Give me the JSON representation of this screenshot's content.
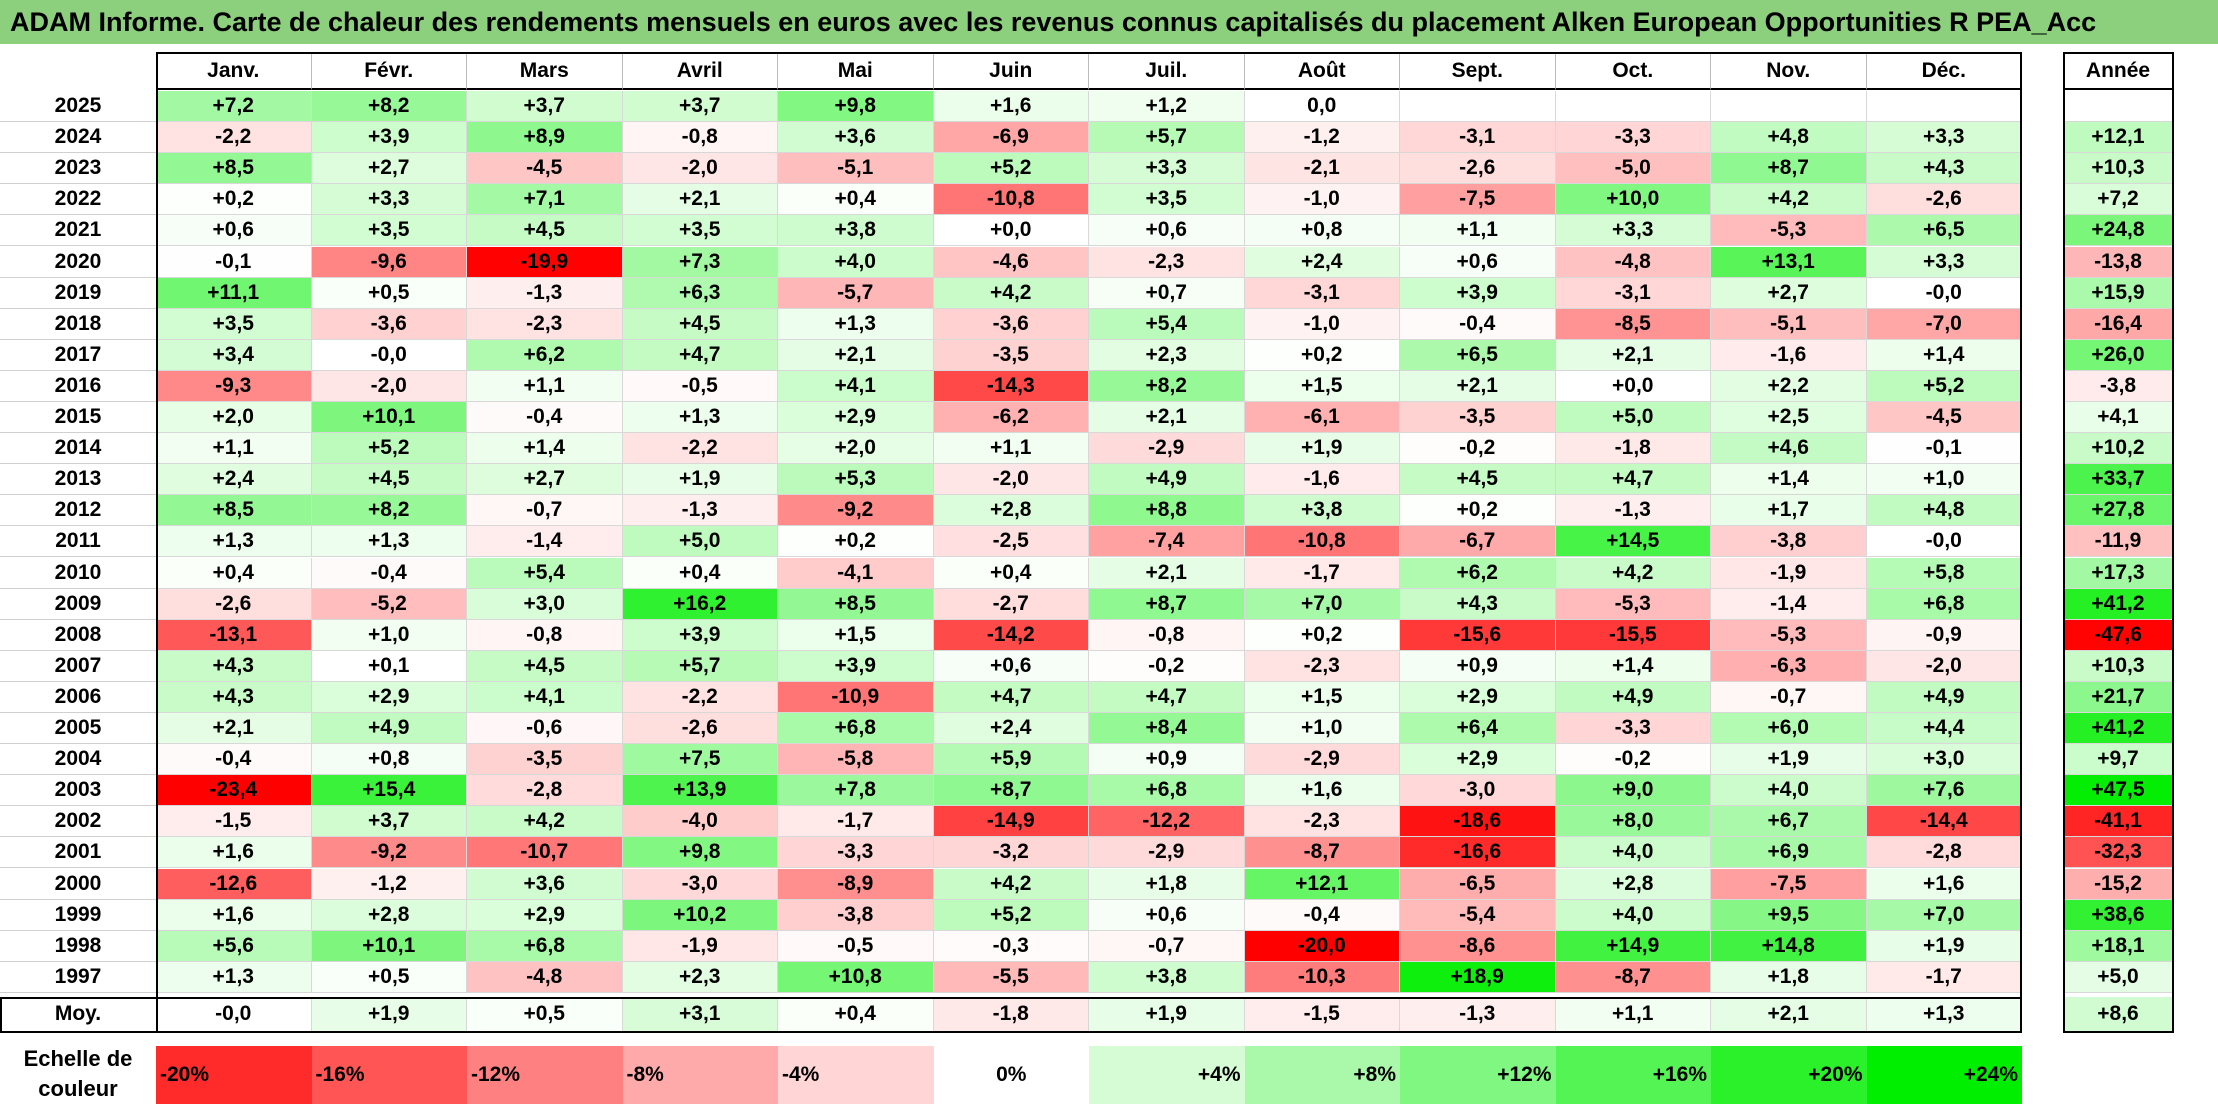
{
  "title": "ADAM Informe. Carte de chaleur des rendements mensuels en euros avec les revenus connus capitalisés du placement Alken European Opportunities R PEA_Acc",
  "colors": {
    "title_bg": "#8ccf7c",
    "negative_max": "#ff0000",
    "neutral": "#ffffff",
    "positive_max": "#00ee00"
  },
  "chart_data": {
    "type": "heatmap",
    "title": "ADAM Informe. Carte de chaleur des rendements mensuels en euros avec les revenus connus capitalisés du placement Alken European Opportunities R PEA_Acc",
    "columns": [
      "Janv.",
      "Févr.",
      "Mars",
      "Avril",
      "Mai",
      "Juin",
      "Juil.",
      "Août",
      "Sept.",
      "Oct.",
      "Nov.",
      "Déc."
    ],
    "annual_header": "Année",
    "rows": [
      {
        "year": "2025",
        "values": [
          "+7,2",
          "+8,2",
          "+3,7",
          "+3,7",
          "+9,8",
          "+1,6",
          "+1,2",
          "0,0",
          "",
          "",
          "",
          ""
        ],
        "annual": ""
      },
      {
        "year": "2024",
        "values": [
          "-2,2",
          "+3,9",
          "+8,9",
          "-0,8",
          "+3,6",
          "-6,9",
          "+5,7",
          "-1,2",
          "-3,1",
          "-3,3",
          "+4,8",
          "+3,3"
        ],
        "annual": "+12,1"
      },
      {
        "year": "2023",
        "values": [
          "+8,5",
          "+2,7",
          "-4,5",
          "-2,0",
          "-5,1",
          "+5,2",
          "+3,3",
          "-2,1",
          "-2,6",
          "-5,0",
          "+8,7",
          "+4,3"
        ],
        "annual": "+10,3"
      },
      {
        "year": "2022",
        "values": [
          "+0,2",
          "+3,3",
          "+7,1",
          "+2,1",
          "+0,4",
          "-10,8",
          "+3,5",
          "-1,0",
          "-7,5",
          "+10,0",
          "+4,2",
          "-2,6"
        ],
        "annual": "+7,2"
      },
      {
        "year": "2021",
        "values": [
          "+0,6",
          "+3,5",
          "+4,5",
          "+3,5",
          "+3,8",
          "+0,0",
          "+0,6",
          "+0,8",
          "+1,1",
          "+3,3",
          "-5,3",
          "+6,5"
        ],
        "annual": "+24,8"
      },
      {
        "year": "2020",
        "values": [
          "-0,1",
          "-9,6",
          "-19,9",
          "+7,3",
          "+4,0",
          "-4,6",
          "-2,3",
          "+2,4",
          "+0,6",
          "-4,8",
          "+13,1",
          "+3,3"
        ],
        "annual": "-13,8"
      },
      {
        "year": "2019",
        "values": [
          "+11,1",
          "+0,5",
          "-1,3",
          "+6,3",
          "-5,7",
          "+4,2",
          "+0,7",
          "-3,1",
          "+3,9",
          "-3,1",
          "+2,7",
          "-0,0"
        ],
        "annual": "+15,9"
      },
      {
        "year": "2018",
        "values": [
          "+3,5",
          "-3,6",
          "-2,3",
          "+4,5",
          "+1,3",
          "-3,6",
          "+5,4",
          "-1,0",
          "-0,4",
          "-8,5",
          "-5,1",
          "-7,0"
        ],
        "annual": "-16,4"
      },
      {
        "year": "2017",
        "values": [
          "+3,4",
          "-0,0",
          "+6,2",
          "+4,7",
          "+2,1",
          "-3,5",
          "+2,3",
          "+0,2",
          "+6,5",
          "+2,1",
          "-1,6",
          "+1,4"
        ],
        "annual": "+26,0"
      },
      {
        "year": "2016",
        "values": [
          "-9,3",
          "-2,0",
          "+1,1",
          "-0,5",
          "+4,1",
          "-14,3",
          "+8,2",
          "+1,5",
          "+2,1",
          "+0,0",
          "+2,2",
          "+5,2"
        ],
        "annual": "-3,8"
      },
      {
        "year": "2015",
        "values": [
          "+2,0",
          "+10,1",
          "-0,4",
          "+1,3",
          "+2,9",
          "-6,2",
          "+2,1",
          "-6,1",
          "-3,5",
          "+5,0",
          "+2,5",
          "-4,5"
        ],
        "annual": "+4,1"
      },
      {
        "year": "2014",
        "values": [
          "+1,1",
          "+5,2",
          "+1,4",
          "-2,2",
          "+2,0",
          "+1,1",
          "-2,9",
          "+1,9",
          "-0,2",
          "-1,8",
          "+4,6",
          "-0,1"
        ],
        "annual": "+10,2"
      },
      {
        "year": "2013",
        "values": [
          "+2,4",
          "+4,5",
          "+2,7",
          "+1,9",
          "+5,3",
          "-2,0",
          "+4,9",
          "-1,6",
          "+4,5",
          "+4,7",
          "+1,4",
          "+1,0"
        ],
        "annual": "+33,7"
      },
      {
        "year": "2012",
        "values": [
          "+8,5",
          "+8,2",
          "-0,7",
          "-1,3",
          "-9,2",
          "+2,8",
          "+8,8",
          "+3,8",
          "+0,2",
          "-1,3",
          "+1,7",
          "+4,8"
        ],
        "annual": "+27,8"
      },
      {
        "year": "2011",
        "values": [
          "+1,3",
          "+1,3",
          "-1,4",
          "+5,0",
          "+0,2",
          "-2,5",
          "-7,4",
          "-10,8",
          "-6,7",
          "+14,5",
          "-3,8",
          "-0,0"
        ],
        "annual": "-11,9"
      },
      {
        "year": "2010",
        "values": [
          "+0,4",
          "-0,4",
          "+5,4",
          "+0,4",
          "-4,1",
          "+0,4",
          "+2,1",
          "-1,7",
          "+6,2",
          "+4,2",
          "-1,9",
          "+5,8"
        ],
        "annual": "+17,3"
      },
      {
        "year": "2009",
        "values": [
          "-2,6",
          "-5,2",
          "+3,0",
          "+16,2",
          "+8,5",
          "-2,7",
          "+8,7",
          "+7,0",
          "+4,3",
          "-5,3",
          "-1,4",
          "+6,8"
        ],
        "annual": "+41,2"
      },
      {
        "year": "2008",
        "values": [
          "-13,1",
          "+1,0",
          "-0,8",
          "+3,9",
          "+1,5",
          "-14,2",
          "-0,8",
          "+0,2",
          "-15,6",
          "-15,5",
          "-5,3",
          "-0,9"
        ],
        "annual": "-47,6"
      },
      {
        "year": "2007",
        "values": [
          "+4,3",
          "+0,1",
          "+4,5",
          "+5,7",
          "+3,9",
          "+0,6",
          "-0,2",
          "-2,3",
          "+0,9",
          "+1,4",
          "-6,3",
          "-2,0"
        ],
        "annual": "+10,3"
      },
      {
        "year": "2006",
        "values": [
          "+4,3",
          "+2,9",
          "+4,1",
          "-2,2",
          "-10,9",
          "+4,7",
          "+4,7",
          "+1,5",
          "+2,9",
          "+4,9",
          "-0,7",
          "+4,9"
        ],
        "annual": "+21,7"
      },
      {
        "year": "2005",
        "values": [
          "+2,1",
          "+4,9",
          "-0,6",
          "-2,6",
          "+6,8",
          "+2,4",
          "+8,4",
          "+1,0",
          "+6,4",
          "-3,3",
          "+6,0",
          "+4,4"
        ],
        "annual": "+41,2"
      },
      {
        "year": "2004",
        "values": [
          "-0,4",
          "+0,8",
          "-3,5",
          "+7,5",
          "-5,8",
          "+5,9",
          "+0,9",
          "-2,9",
          "+2,9",
          "-0,2",
          "+1,9",
          "+3,0"
        ],
        "annual": "+9,7"
      },
      {
        "year": "2003",
        "values": [
          "-23,4",
          "+15,4",
          "-2,8",
          "+13,9",
          "+7,8",
          "+8,7",
          "+6,8",
          "+1,6",
          "-3,0",
          "+9,0",
          "+4,0",
          "+7,6"
        ],
        "annual": "+47,5"
      },
      {
        "year": "2002",
        "values": [
          "-1,5",
          "+3,7",
          "+4,2",
          "-4,0",
          "-1,7",
          "-14,9",
          "-12,2",
          "-2,3",
          "-18,6",
          "+8,0",
          "+6,7",
          "-14,4"
        ],
        "annual": "-41,1"
      },
      {
        "year": "2001",
        "values": [
          "+1,6",
          "-9,2",
          "-10,7",
          "+9,8",
          "-3,3",
          "-3,2",
          "-2,9",
          "-8,7",
          "-16,6",
          "+4,0",
          "+6,9",
          "-2,8"
        ],
        "annual": "-32,3"
      },
      {
        "year": "2000",
        "values": [
          "-12,6",
          "-1,2",
          "+3,6",
          "-3,0",
          "-8,9",
          "+4,2",
          "+1,8",
          "+12,1",
          "-6,5",
          "+2,8",
          "-7,5",
          "+1,6"
        ],
        "annual": "-15,2"
      },
      {
        "year": "1999",
        "values": [
          "+1,6",
          "+2,8",
          "+2,9",
          "+10,2",
          "-3,8",
          "+5,2",
          "+0,6",
          "-0,4",
          "-5,4",
          "+4,0",
          "+9,5",
          "+7,0"
        ],
        "annual": "+38,6"
      },
      {
        "year": "1998",
        "values": [
          "+5,6",
          "+10,1",
          "+6,8",
          "-1,9",
          "-0,5",
          "-0,3",
          "-0,7",
          "-20,0",
          "-8,6",
          "+14,9",
          "+14,8",
          "+1,9"
        ],
        "annual": "+18,1"
      },
      {
        "year": "1997",
        "values": [
          "+1,3",
          "+0,5",
          "-4,8",
          "+2,3",
          "+10,8",
          "-5,5",
          "+3,8",
          "-10,3",
          "+18,9",
          "-8,7",
          "+1,8",
          "-1,7"
        ],
        "annual": "+5,0"
      }
    ],
    "average": {
      "label": "Moy.",
      "values": [
        "-0,0",
        "+1,9",
        "+0,5",
        "+3,1",
        "+0,4",
        "-1,8",
        "+1,9",
        "-1,5",
        "-1,3",
        "+1,1",
        "+2,1",
        "+1,3"
      ],
      "annual": "+8,6"
    },
    "scale": {
      "label_line1": "Echelle de",
      "label_line2": "couleur",
      "stops": [
        "-20%",
        "-16%",
        "-12%",
        "-8%",
        "-4%",
        "0%",
        "+4%",
        "+8%",
        "+12%",
        "+16%",
        "+20%",
        "+24%"
      ]
    }
  }
}
